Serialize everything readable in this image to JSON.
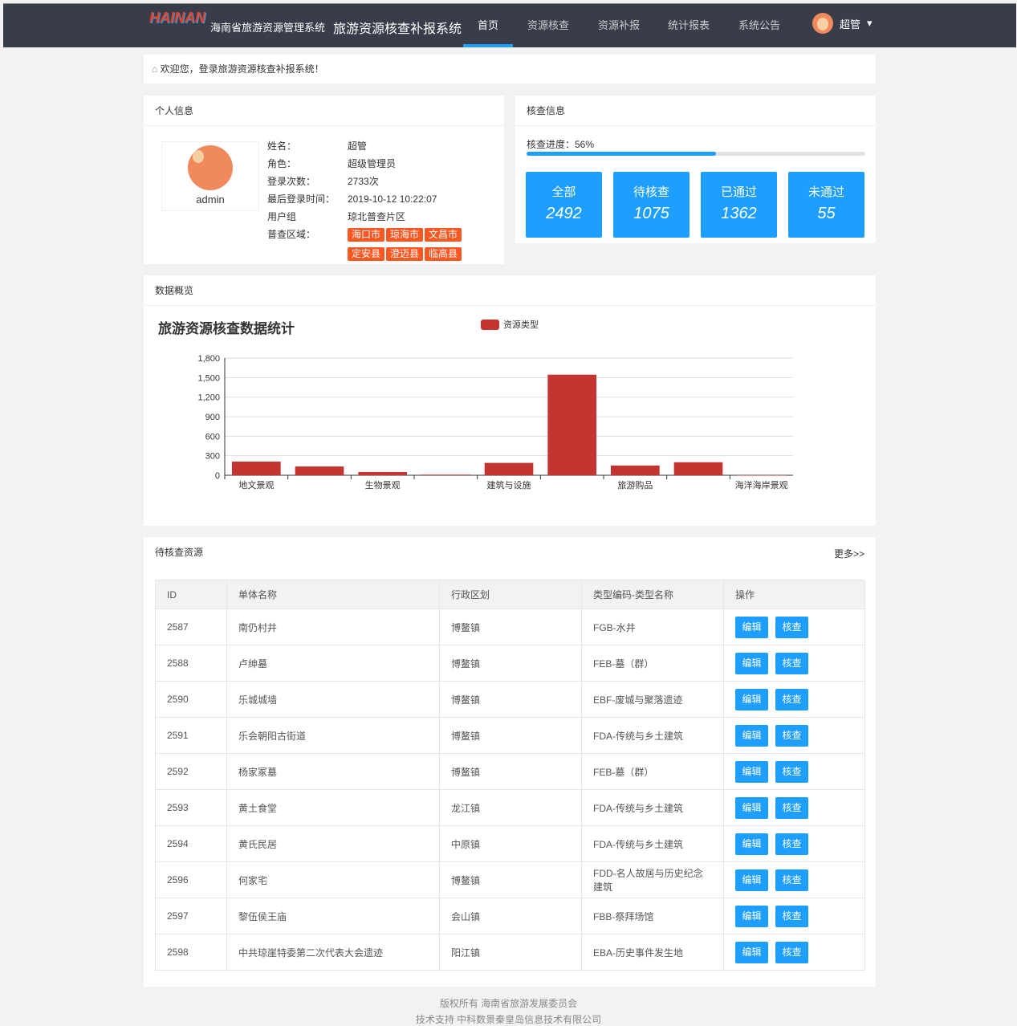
{
  "header": {
    "logo_text": "HAINAN",
    "system_name": "海南省旅游资源管理系统",
    "app_title": "旅游资源核查补报系统",
    "nav": [
      "首页",
      "资源核查",
      "资源补报",
      "统计报表",
      "系统公告"
    ],
    "active_nav": 0,
    "user": "超管"
  },
  "welcome": "欢迎您，登录旅游资源核查补报系统！",
  "profile": {
    "title": "个人信息",
    "username": "admin",
    "fields": [
      {
        "k": "姓名：",
        "v": "超管"
      },
      {
        "k": "角色：",
        "v": "超级管理员"
      },
      {
        "k": "登录次数：",
        "v": "2733次"
      },
      {
        "k": "最后登录时间：",
        "v": "2019-10-12 10:22:07"
      },
      {
        "k": "用户组",
        "v": "琼北普查片区"
      }
    ],
    "area_label": "普查区域：",
    "areas": [
      "海口市",
      "琼海市",
      "文昌市",
      "定安县",
      "澄迈县",
      "临高县"
    ]
  },
  "check": {
    "title": "核查信息",
    "progress_label": "核查进度：56%",
    "progress": 56,
    "stats": [
      {
        "label": "全部",
        "value": "2492"
      },
      {
        "label": "待核查",
        "value": "1075"
      },
      {
        "label": "已通过",
        "value": "1362"
      },
      {
        "label": "未通过",
        "value": "55"
      }
    ],
    "accent": "#1e9fff"
  },
  "overview": {
    "title": "数据概览"
  },
  "chart_data": {
    "type": "bar",
    "title": "旅游资源核查数据统计",
    "legend": "资源类型",
    "legend_position": "top",
    "color": "#c23531",
    "categories": [
      "地文景观",
      "",
      "生物景观",
      "",
      "建筑与设施",
      "",
      "旅游购品",
      "",
      "海洋海岸景观"
    ],
    "values": [
      210,
      135,
      50,
      10,
      190,
      1545,
      150,
      200,
      0
    ],
    "ylim": [
      0,
      1800
    ],
    "yticks": [
      "0",
      "300",
      "600",
      "900",
      "1,200",
      "1,500",
      "1,800"
    ],
    "grid": true
  },
  "pending": {
    "title": "待核查资源",
    "more": "更多>>",
    "columns": [
      "ID",
      "单体名称",
      "行政区划",
      "类型编码-类型名称",
      "操作"
    ],
    "edit_label": "编辑",
    "check_label": "核查",
    "rows": [
      [
        "2587",
        "南仍村井",
        "博鳌镇",
        "FGB-水井"
      ],
      [
        "2588",
        "卢绅墓",
        "博鳌镇",
        "FEB-墓（群）"
      ],
      [
        "2590",
        "乐城城墙",
        "博鳌镇",
        "EBF-废城与聚落遗迹"
      ],
      [
        "2591",
        "乐会朝阳古街道",
        "博鳌镇",
        "FDA-传统与乡土建筑"
      ],
      [
        "2592",
        "杨家冢墓",
        "博鳌镇",
        "FEB-墓（群）"
      ],
      [
        "2593",
        "黄土食堂",
        "龙江镇",
        "FDA-传统与乡土建筑"
      ],
      [
        "2594",
        "黄氏民居",
        "中原镇",
        "FDA-传统与乡土建筑"
      ],
      [
        "2596",
        "何家宅",
        "博鳌镇",
        "FDD-名人故居与历史纪念建筑"
      ],
      [
        "2597",
        "黎伍侯王庙",
        "会山镇",
        "FBB-祭拜场馆"
      ],
      [
        "2598",
        "中共琼崖特委第二次代表大会遗迹",
        "阳江镇",
        "EBA-历史事件发生地"
      ]
    ]
  },
  "footer": {
    "line1": "版权所有 海南省旅游发展委员会",
    "line2": "技术支持 中科数景秦皇岛信息技术有限公司"
  }
}
